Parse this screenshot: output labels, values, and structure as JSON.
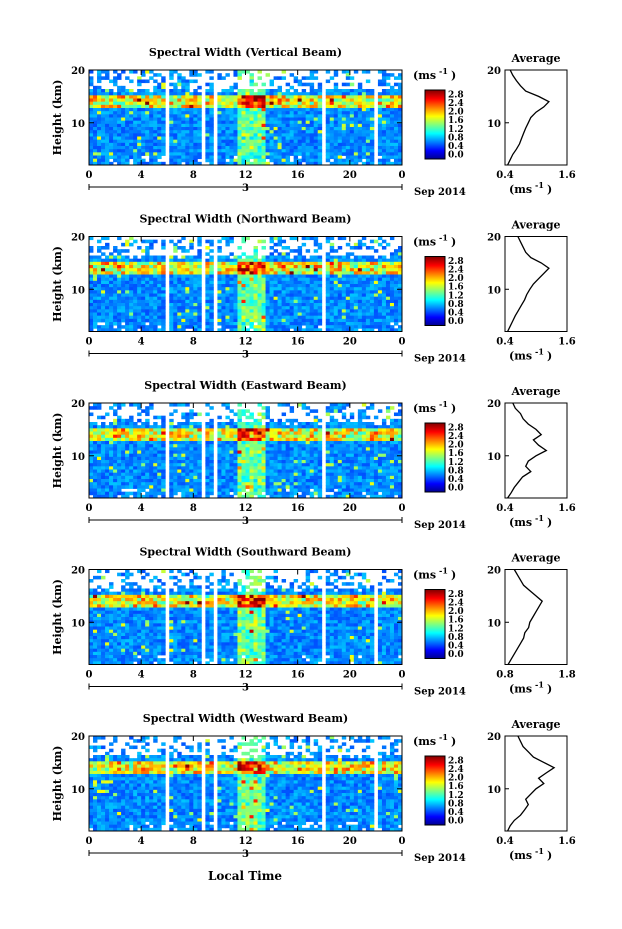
{
  "figure": {
    "xlabel": "Local Time",
    "date_label": "Sep 2014",
    "day_tick_label": "3",
    "avg_title": "Average",
    "avg_unit_label": "(ms",
    "avg_unit_sup": "-1",
    "avg_unit_close": ")",
    "cbar_unit": "(ms",
    "cbar_unit_sup": "-1",
    "cbar_unit_close": ")",
    "ylabel": "Height (km)"
  },
  "chart_data": [
    {
      "type": "heatmap",
      "title": "Spectral Width (Vertical Beam)",
      "x_ticks": [
        "0",
        "4",
        "8",
        "12",
        "16",
        "20",
        "0"
      ],
      "y_ticks": [
        "20",
        "10"
      ],
      "xlim": [
        0,
        24
      ],
      "ylim": [
        2,
        20
      ],
      "cbar_ticks": [
        "2.8",
        "2.4",
        "2.0",
        "1.6",
        "1.2",
        "0.8",
        "0.4",
        "0.0"
      ],
      "cbar_range": [
        0.0,
        2.8
      ],
      "gaps_hours": [
        [
          5.8,
          6.2
        ],
        [
          8.5,
          8.9
        ],
        [
          9.4,
          9.8
        ],
        [
          17.8,
          18.2
        ],
        [
          21.8,
          22.2
        ]
      ],
      "avg_xticks": [
        "0.4",
        "1.6"
      ],
      "avg_yticks": [
        "20",
        "10"
      ],
      "avg_xlim": [
        0.4,
        1.6
      ],
      "avg_profile": {
        "height": [
          2,
          3,
          4,
          5,
          6,
          7,
          8,
          9,
          10,
          11,
          12,
          13,
          14,
          15,
          16,
          17,
          18,
          19,
          20
        ],
        "value": [
          0.45,
          0.5,
          0.55,
          0.62,
          0.68,
          0.72,
          0.76,
          0.8,
          0.85,
          0.9,
          1.0,
          1.15,
          1.25,
          1.05,
          0.8,
          0.7,
          0.62,
          0.55,
          0.5
        ]
      }
    },
    {
      "type": "heatmap",
      "title": "Spectral Width (Northward Beam)",
      "x_ticks": [
        "0",
        "4",
        "8",
        "12",
        "16",
        "20",
        "0"
      ],
      "y_ticks": [
        "20",
        "10"
      ],
      "xlim": [
        0,
        24
      ],
      "ylim": [
        2,
        20
      ],
      "cbar_ticks": [
        "2.8",
        "2.4",
        "2.0",
        "1.6",
        "1.2",
        "0.8",
        "0.4",
        "0.0"
      ],
      "cbar_range": [
        0.0,
        2.8
      ],
      "gaps_hours": [
        [
          5.8,
          6.2
        ],
        [
          8.5,
          8.9
        ],
        [
          9.4,
          9.8
        ],
        [
          17.8,
          18.2
        ]
      ],
      "avg_xticks": [
        "0.4",
        "1.6"
      ],
      "avg_yticks": [
        "20",
        "10"
      ],
      "avg_xlim": [
        0.4,
        1.6
      ],
      "avg_profile": {
        "height": [
          2,
          3,
          4,
          5,
          6,
          7,
          8,
          9,
          10,
          11,
          12,
          13,
          14,
          15,
          16,
          17,
          18,
          19,
          20
        ],
        "value": [
          0.45,
          0.5,
          0.55,
          0.6,
          0.66,
          0.72,
          0.78,
          0.82,
          0.88,
          0.95,
          1.05,
          1.15,
          1.25,
          1.1,
          0.9,
          0.8,
          0.75,
          0.7,
          0.65
        ]
      }
    },
    {
      "type": "heatmap",
      "title": "Spectral Width (Eastward Beam)",
      "x_ticks": [
        "0",
        "4",
        "8",
        "12",
        "16",
        "20",
        "0"
      ],
      "y_ticks": [
        "20",
        "10"
      ],
      "xlim": [
        0,
        24
      ],
      "ylim": [
        2,
        20
      ],
      "cbar_ticks": [
        "2.8",
        "2.4",
        "2.0",
        "1.6",
        "1.2",
        "0.8",
        "0.4",
        "0.0"
      ],
      "cbar_range": [
        0.0,
        2.8
      ],
      "gaps_hours": [
        [
          5.8,
          6.2
        ],
        [
          8.5,
          8.9
        ],
        [
          9.4,
          9.8
        ],
        [
          17.8,
          18.2
        ]
      ],
      "avg_xticks": [
        "0.4",
        "1.6"
      ],
      "avg_yticks": [
        "20",
        "10"
      ],
      "avg_xlim": [
        0.4,
        1.6
      ],
      "avg_profile": {
        "height": [
          2,
          3,
          4,
          5,
          6,
          7,
          8,
          9,
          10,
          11,
          12,
          13,
          14,
          15,
          16,
          17,
          18,
          19,
          20
        ],
        "value": [
          0.45,
          0.52,
          0.58,
          0.66,
          0.74,
          0.9,
          0.8,
          0.85,
          1.0,
          1.2,
          1.05,
          0.95,
          1.1,
          1.0,
          0.85,
          0.75,
          0.7,
          0.6,
          0.55
        ]
      }
    },
    {
      "type": "heatmap",
      "title": "Spectral Width (Southward Beam)",
      "x_ticks": [
        "0",
        "4",
        "8",
        "12",
        "16",
        "20",
        "0"
      ],
      "y_ticks": [
        "20",
        "10"
      ],
      "xlim": [
        0,
        24
      ],
      "ylim": [
        2,
        20
      ],
      "cbar_ticks": [
        "2.8",
        "2.4",
        "2.0",
        "1.6",
        "1.2",
        "0.8",
        "0.4",
        "0.0"
      ],
      "cbar_range": [
        0.0,
        2.8
      ],
      "gaps_hours": [
        [
          5.8,
          6.2
        ],
        [
          8.5,
          8.9
        ],
        [
          9.4,
          9.8
        ],
        [
          17.8,
          18.2
        ],
        [
          21.8,
          22.2
        ]
      ],
      "avg_xticks": [
        "0.8",
        "1.8"
      ],
      "avg_yticks": [
        "20",
        "10"
      ],
      "avg_xlim": [
        0.8,
        1.8
      ],
      "avg_profile": {
        "height": [
          2,
          3,
          4,
          5,
          6,
          7,
          8,
          9,
          10,
          11,
          12,
          13,
          14,
          15,
          16,
          17,
          18,
          19,
          20
        ],
        "value": [
          0.85,
          0.9,
          0.95,
          1.0,
          1.05,
          1.1,
          1.12,
          1.18,
          1.2,
          1.25,
          1.3,
          1.35,
          1.4,
          1.3,
          1.2,
          1.1,
          1.05,
          1.0,
          0.95
        ]
      }
    },
    {
      "type": "heatmap",
      "title": "Spectral Width (Westward Beam)",
      "x_ticks": [
        "0",
        "4",
        "8",
        "12",
        "16",
        "20",
        "0"
      ],
      "y_ticks": [
        "20",
        "10"
      ],
      "xlim": [
        0,
        24
      ],
      "ylim": [
        2,
        20
      ],
      "cbar_ticks": [
        "2.8",
        "2.4",
        "2.0",
        "1.6",
        "1.2",
        "0.8",
        "0.4",
        "0.0"
      ],
      "cbar_range": [
        0.0,
        2.8
      ],
      "gaps_hours": [
        [
          5.8,
          6.2
        ],
        [
          8.5,
          8.9
        ],
        [
          9.4,
          9.8
        ],
        [
          17.8,
          18.2
        ],
        [
          21.8,
          22.2
        ]
      ],
      "avg_xticks": [
        "0.4",
        "1.6"
      ],
      "avg_yticks": [
        "20",
        "10"
      ],
      "avg_xlim": [
        0.4,
        1.6
      ],
      "avg_profile": {
        "height": [
          2,
          3,
          4,
          5,
          6,
          7,
          8,
          9,
          10,
          11,
          12,
          13,
          14,
          15,
          16,
          17,
          18,
          19,
          20
        ],
        "value": [
          0.45,
          0.5,
          0.58,
          0.7,
          0.78,
          0.85,
          0.8,
          0.9,
          1.0,
          1.15,
          1.05,
          1.2,
          1.35,
          1.15,
          0.95,
          0.85,
          0.75,
          0.7,
          0.65
        ]
      }
    }
  ]
}
